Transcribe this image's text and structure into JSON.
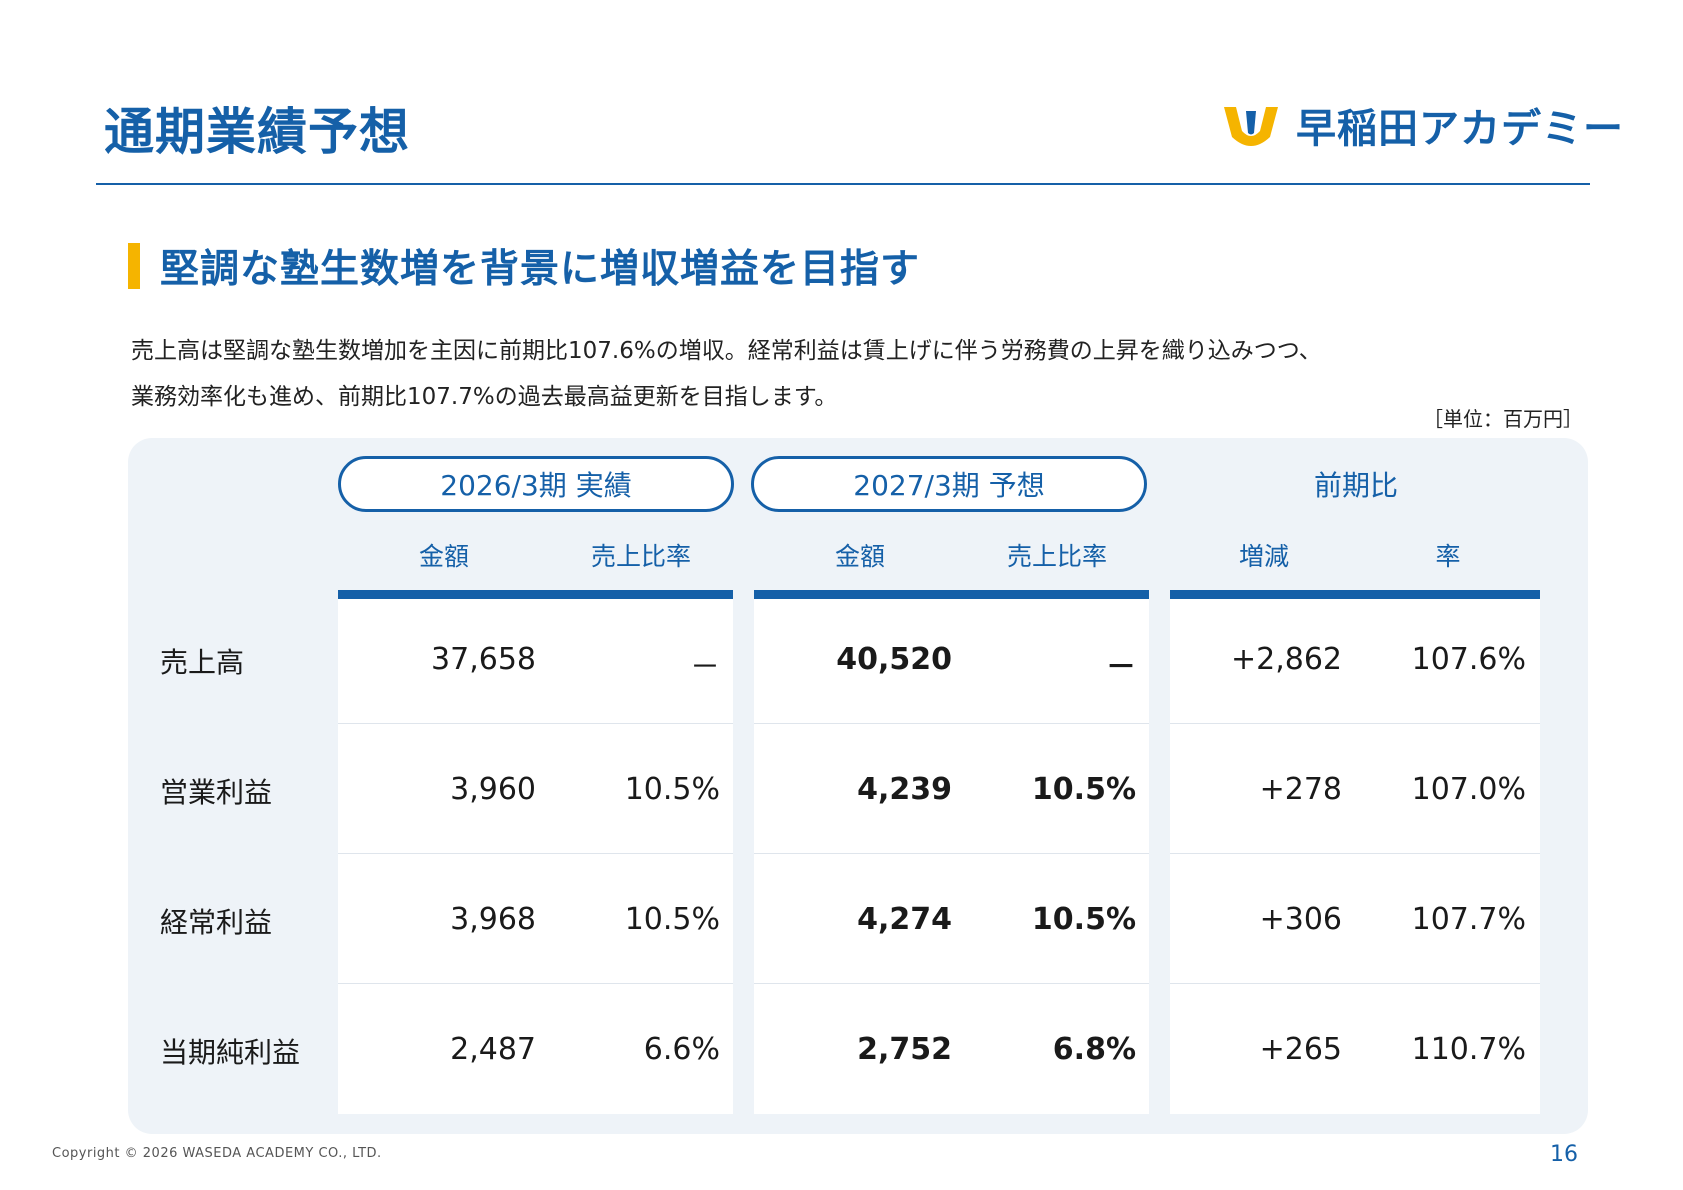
{
  "header": {
    "title": "通期業績予想",
    "logo_text": "早稲田アカデミー"
  },
  "colors": {
    "brand_blue": "#1560a8",
    "accent_yellow": "#f5b400",
    "panel_bg": "#eef3f8"
  },
  "section": {
    "heading": "堅調な塾生数増を背景に増収増益を目指す",
    "lead_line1": "売上高は堅調な塾生数増加を主因に前期比107.6%の増収。経常利益は賃上げに伴う労務費の上昇を織り込みつつ、",
    "lead_line2": "業務効率化も進め、前期比107.7%の過去最高益更新を目指します。",
    "unit": "［単位：百万円］"
  },
  "table": {
    "groups": [
      "2026/3期 実績",
      "2027/3期 予想",
      "前期比"
    ],
    "subheads": [
      "金額",
      "売上比率",
      "金額",
      "売上比率",
      "増減",
      "率"
    ],
    "rows": [
      {
        "label": "売上高",
        "cells": [
          "37,658",
          "－",
          "40,520",
          "－",
          "+2,862",
          "107.6%"
        ]
      },
      {
        "label": "営業利益",
        "cells": [
          "3,960",
          "10.5%",
          "4,239",
          "10.5%",
          "+278",
          "107.0%"
        ]
      },
      {
        "label": "経常利益",
        "cells": [
          "3,968",
          "10.5%",
          "4,274",
          "10.5%",
          "+306",
          "107.7%"
        ]
      },
      {
        "label": "当期純利益",
        "cells": [
          "2,487",
          "6.6%",
          "2,752",
          "6.8%",
          "+265",
          "110.7%"
        ]
      }
    ]
  },
  "footer": {
    "copyright": "Copyright © 2026 WASEDA ACADEMY CO., LTD.",
    "page_number": "16"
  }
}
